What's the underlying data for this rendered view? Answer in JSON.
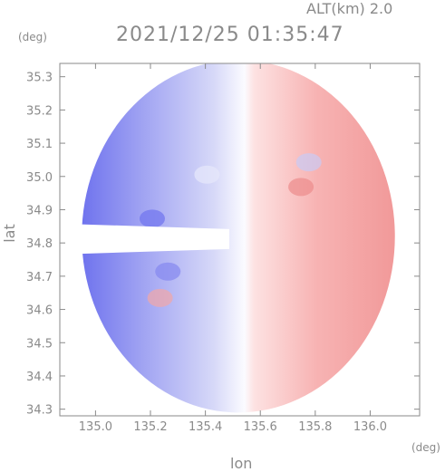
{
  "header": {
    "altitude": "ALT(km) 2.0",
    "timestamp": "2021/12/25 01:35:47"
  },
  "units": {
    "y": "(deg)",
    "x": "(deg)"
  },
  "chart_data": {
    "type": "heatmap",
    "title": "2021/12/25 01:35:47",
    "subtitle": "ALT(km) 2.0",
    "xlabel": "lon",
    "ylabel": "lat",
    "xlim": [
      134.87,
      136.18
    ],
    "ylim": [
      34.28,
      35.34
    ],
    "xticks": [
      "135.0",
      "135.2",
      "135.4",
      "135.6",
      "135.8",
      "136.0"
    ],
    "yticks": [
      "34.3",
      "34.4",
      "34.5",
      "34.6",
      "34.7",
      "34.8",
      "34.9",
      "35.0",
      "35.1",
      "35.2",
      "35.3"
    ],
    "radar_center": [
      135.52,
      34.82
    ],
    "radar_range_deg": 0.57,
    "field": "Doppler velocity (blue = toward, red = away)",
    "colors": {
      "toward": "#7b7ef0",
      "away": "#f07b7b",
      "neutral": "#ffffff"
    },
    "grid": false
  }
}
